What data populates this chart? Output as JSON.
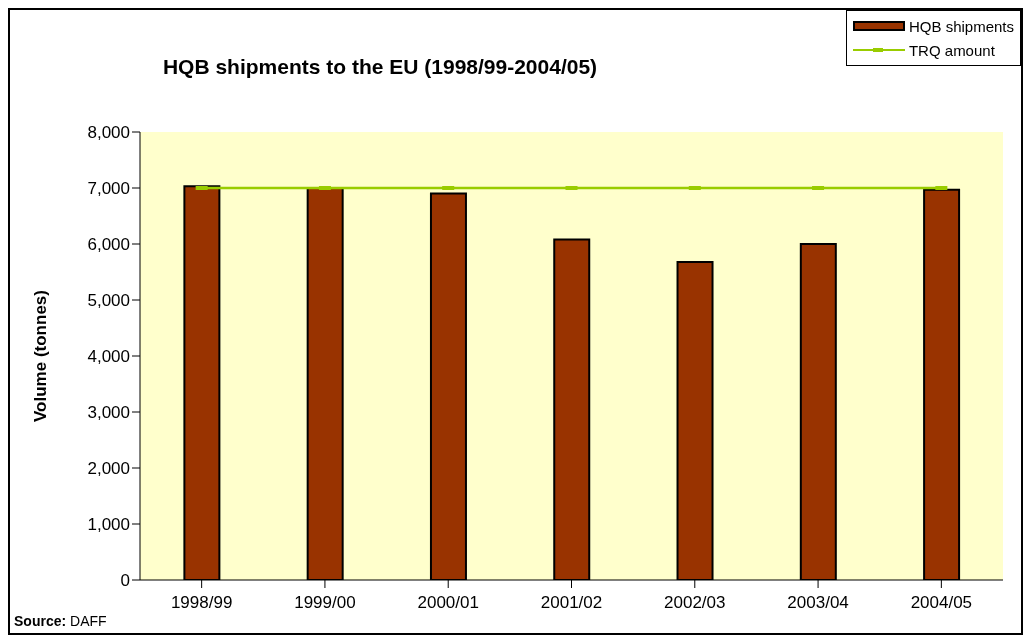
{
  "chart_data": {
    "type": "bar",
    "title": "HQB shipments to the EU (1998/99-2004/05)",
    "ylabel": "Volume (tonnes)",
    "categories": [
      "1998/99",
      "1999/00",
      "2000/01",
      "2001/02",
      "2002/03",
      "2003/04",
      "2004/05"
    ],
    "series": [
      {
        "name": "HQB shipments",
        "color": "#993300",
        "values": [
          7030,
          7000,
          6900,
          6080,
          5680,
          6000,
          6970
        ]
      },
      {
        "name": "TRQ amount",
        "type": "line",
        "color": "#99cc00",
        "marker": "square",
        "values": [
          7000,
          7000,
          7000,
          7000,
          7000,
          7000,
          7000
        ]
      }
    ],
    "ylim": [
      0,
      8000
    ],
    "yticks": [
      {
        "value": 0,
        "label": "0"
      },
      {
        "value": 1000,
        "label": "1,000"
      },
      {
        "value": 2000,
        "label": "2,000"
      },
      {
        "value": 3000,
        "label": "3,000"
      },
      {
        "value": 4000,
        "label": "4,000"
      },
      {
        "value": 5000,
        "label": "5,000"
      },
      {
        "value": 6000,
        "label": "6,000"
      },
      {
        "value": 7000,
        "label": "7,000"
      },
      {
        "value": 8000,
        "label": "8,000"
      }
    ],
    "grid": false,
    "legend": "top right",
    "annotations": [
      "Source: DAFF"
    ]
  }
}
